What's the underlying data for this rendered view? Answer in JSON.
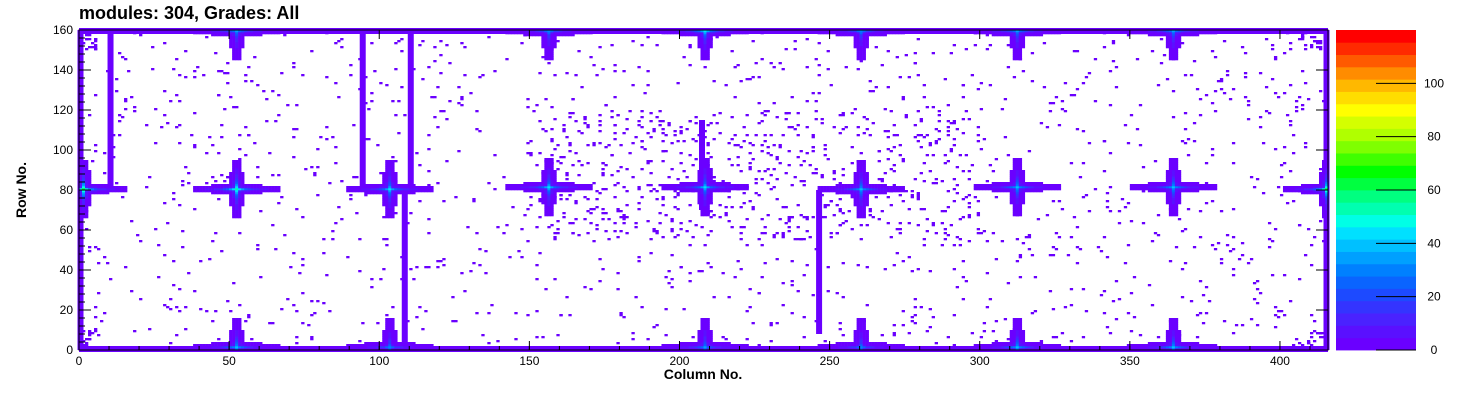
{
  "chart_data": {
    "type": "heatmap",
    "title": "modules: 304, Grades: All",
    "xlabel": "Column No.",
    "ylabel": "Row No.",
    "xlim": [
      0,
      416
    ],
    "ylim": [
      0,
      160
    ],
    "x_ticks": [
      0,
      50,
      100,
      150,
      200,
      250,
      300,
      350,
      400
    ],
    "y_ticks": [
      0,
      20,
      40,
      60,
      80,
      100,
      120,
      140,
      160
    ],
    "colorbar": {
      "range": [
        0,
        120
      ],
      "ticks": [
        0,
        20,
        40,
        60,
        80,
        100
      ],
      "colors": [
        "#6a00ff",
        "#5a10ff",
        "#4a22ff",
        "#3434ff",
        "#1d4aff",
        "#0a64ff",
        "#0080ff",
        "#00a0ff",
        "#00c0ff",
        "#00e0ff",
        "#00ffe6",
        "#00ffb0",
        "#00ff80",
        "#00ff40",
        "#00ff00",
        "#40ff00",
        "#7fff00",
        "#b0ff00",
        "#d4ff00",
        "#ffff00",
        "#ffdd00",
        "#ffb800",
        "#ff8c00",
        "#ff5a00",
        "#ff2a00",
        "#ff0000"
      ]
    },
    "hotspots": [
      {
        "x": 1,
        "y": 80,
        "peak": 60
      },
      {
        "x": 52,
        "y": 80,
        "peak": 55
      },
      {
        "x": 103,
        "y": 80,
        "peak": 45
      },
      {
        "x": 156,
        "y": 81,
        "peak": 45
      },
      {
        "x": 208,
        "y": 81,
        "peak": 45
      },
      {
        "x": 260,
        "y": 80,
        "peak": 40
      },
      {
        "x": 312,
        "y": 81,
        "peak": 40
      },
      {
        "x": 364,
        "y": 81,
        "peak": 40
      },
      {
        "x": 415,
        "y": 80,
        "peak": 60
      },
      {
        "x": 52,
        "y": 1,
        "peak": 40
      },
      {
        "x": 103,
        "y": 1,
        "peak": 30
      },
      {
        "x": 208,
        "y": 1,
        "peak": 35
      },
      {
        "x": 260,
        "y": 1,
        "peak": 30
      },
      {
        "x": 312,
        "y": 1,
        "peak": 40
      },
      {
        "x": 364,
        "y": 1,
        "peak": 40
      },
      {
        "x": 52,
        "y": 159,
        "peak": 35
      },
      {
        "x": 156,
        "y": 159,
        "peak": 30
      },
      {
        "x": 208,
        "y": 159,
        "peak": 45
      },
      {
        "x": 260,
        "y": 159,
        "peak": 30
      },
      {
        "x": 312,
        "y": 159,
        "peak": 35
      },
      {
        "x": 364,
        "y": 159,
        "peak": 35
      }
    ],
    "lines": [
      {
        "orientation": "vertical",
        "x": 10.5,
        "y_range": [
          80,
          160
        ]
      },
      {
        "orientation": "vertical",
        "x": 94.5,
        "y_range": [
          80,
          160
        ]
      },
      {
        "orientation": "vertical",
        "x": 110.5,
        "y_range": [
          80,
          160
        ]
      },
      {
        "orientation": "vertical",
        "x": 108.5,
        "y_range": [
          0,
          78
        ]
      },
      {
        "orientation": "vertical",
        "x": 246.5,
        "y_range": [
          8,
          80
        ]
      },
      {
        "orientation": "vertical",
        "x": 207.5,
        "y_range": [
          70,
          115
        ]
      },
      {
        "orientation": "vertical",
        "x": 0.5,
        "y_range": [
          0,
          160
        ]
      },
      {
        "orientation": "vertical",
        "x": 415.5,
        "y_range": [
          0,
          160
        ]
      },
      {
        "orientation": "horizontal",
        "y": 0.5,
        "x_range": [
          0,
          416
        ]
      },
      {
        "orientation": "horizontal",
        "y": 159.5,
        "x_range": [
          0,
          416
        ]
      },
      {
        "orientation": "horizontal",
        "y": 80.5,
        "x_range": [
          95,
          112
        ]
      }
    ],
    "background_value": 0,
    "scatter_density": "sparse isolated hits of value ~1 across the sensor, denser near x 150-300, y 60-120"
  }
}
